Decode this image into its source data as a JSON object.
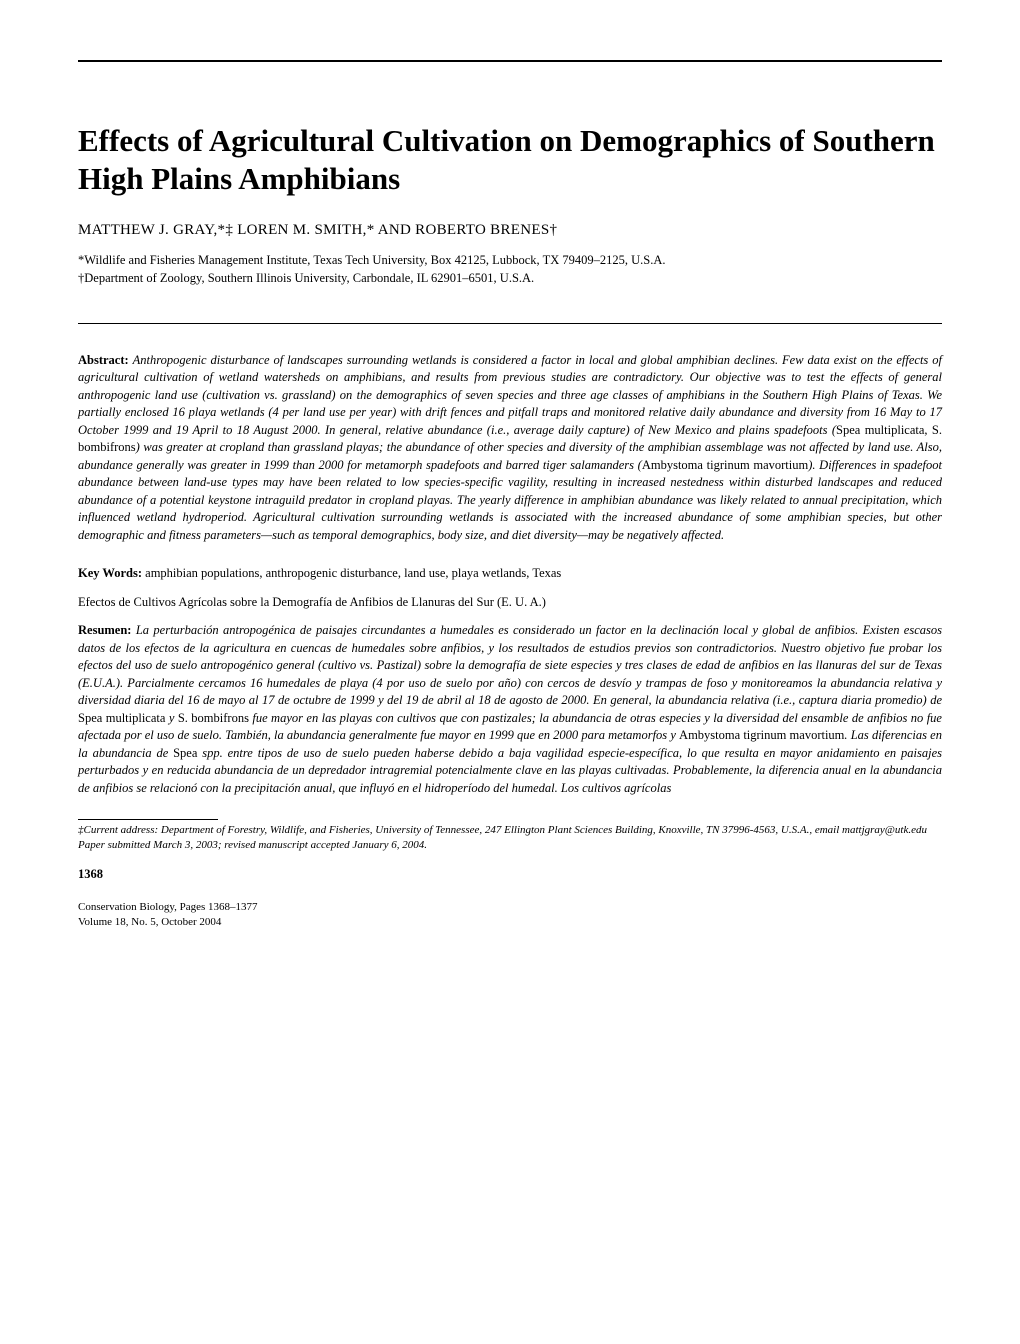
{
  "title": "Effects of Agricultural Cultivation on Demographics of Southern High Plains Amphibians",
  "authors": "MATTHEW J. GRAY,*‡ LOREN M. SMITH,* AND ROBERTO BRENES†",
  "affiliations": {
    "line1": "*Wildlife and Fisheries Management Institute, Texas Tech University, Box 42125, Lubbock, TX 79409–2125, U.S.A.",
    "line2": "†Department of Zoology, Southern Illinois University, Carbondale, IL 62901–6501, U.S.A."
  },
  "abstract": {
    "label": "Abstract:",
    "pre1": "Anthropogenic disturbance of landscapes surrounding wetlands is considered a factor in local and global amphibian declines. Few data exist on the effects of agricultural cultivation of wetland watersheds on amphibians, and results from previous studies are contradictory. Our objective was to test the effects of general anthropogenic land use (cultivation vs. grassland) on the demographics of seven species and three age classes of amphibians in the Southern High Plains of Texas. We partially enclosed 16 playa wetlands (4 per land use per year) with drift fences and pitfall traps and monitored relative daily abundance and diversity from 16 May to 17 October 1999 and 19 April to 18 August 2000. In general, relative abundance (i.e., average daily capture) of New Mexico and plains spadefoots (",
    "roman1": "Spea multiplicata, S. bombifrons",
    "mid1": ") was greater at cropland than grassland playas; the abundance of other species and diversity of the amphibian assemblage was not affected by land use. Also, abundance generally was greater in 1999 than 2000 for metamorph spadefoots and barred tiger salamanders (",
    "roman2": "Ambystoma tigrinum mavortium",
    "post1": "). Differences in spadefoot abundance between land-use types may have been related to low species-specific vagility, resulting in increased nestedness within disturbed landscapes and reduced abundance of a potential keystone intraguild predator in cropland playas. The yearly difference in amphibian abundance was likely related to annual precipitation, which influenced wetland hydroperiod. Agricultural cultivation surrounding wetlands is associated with the increased abundance of some amphibian species, but other demographic and fitness parameters—such as temporal demographics, body size, and diet diversity—may be negatively affected."
  },
  "keywords": {
    "label": "Key Words:",
    "text": " amphibian populations, anthropogenic disturbance, land use, playa wetlands, Texas"
  },
  "spanish_title": "Efectos de Cultivos Agrícolas sobre la Demografía de Anfibios de Llanuras del Sur (E. U. A.)",
  "resumen": {
    "label": "Resumen:",
    "pre1": "La perturbación antropogénica de paisajes circundantes a humedales es considerado un factor en la declinación local y global de anfibios. Existen escasos datos de los efectos de la agricultura en cuencas de humedales sobre anfibios, y los resultados de estudios previos son contradictorios. Nuestro objetivo fue probar los efectos del uso de suelo antropogénico general (cultivo vs. Pastizal) sobre la demografía de siete especies y tres clases de edad de anfibios en las llanuras del sur de Texas (E.U.A.). Parcialmente cercamos 16 humedales de playa (4 por uso de suelo por año) con cercos de desvío y trampas de foso y monitoreamos la abundancia relativa y diversidad diaria del 16 de mayo al 17 de octubre de 1999 y del 19 de abril al 18 de agosto de 2000. En general, la abundancia relativa (i.e., captura diaria promedio) de ",
    "roman1": "Spea multiplicata",
    "mid1": " y ",
    "roman2": "S. bombifrons",
    "mid2": " fue mayor en las playas con cultivos que con pastizales; la abundancia de otras especies y la diversidad del ensamble de anfibios no fue afectada por el uso de suelo. También, la abundancia generalmente fue mayor en 1999 que en 2000 para metamorfos y ",
    "roman3": "Ambystoma tigrinum mavortium",
    "mid3": ". Las diferencias en la abundancia de ",
    "roman4": "Spea",
    "mid4": " spp. entre tipos de uso de suelo pueden haberse debido a baja vagilidad especie-específica, lo que resulta en mayor anidamiento en paisajes perturbados y en reducida abundancia de un depredador intragremial potencialmente clave en las playas cultivadas. Probablemente, la diferencia anual en la abundancia de anfibios se relacionó con la precipitación anual, que influyó en el hidroperíodo del humedal. Los cultivos agrícolas"
  },
  "footnotes": {
    "line1": "‡Current address: Department of Forestry, Wildlife, and Fisheries, University of Tennessee, 247 Ellington Plant Sciences Building, Knoxville, TN 37996-4563, U.S.A., email mattjgray@utk.edu",
    "line2": "Paper submitted March 3, 2003; revised manuscript accepted January 6, 2004."
  },
  "pagenum": "1368",
  "footer": {
    "line1": "Conservation Biology, Pages 1368–1377",
    "line2": "Volume 18, No. 5, October 2004"
  }
}
